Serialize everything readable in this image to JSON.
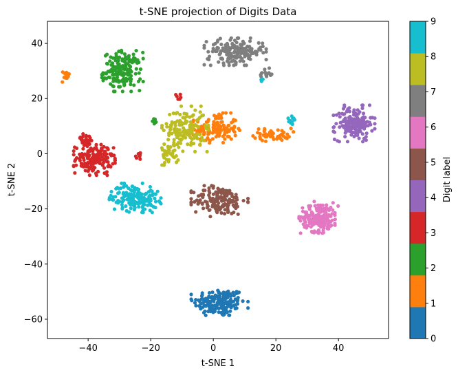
{
  "chart_data": {
    "type": "scatter",
    "title": "t-SNE projection of Digits Data",
    "xlabel": "t-SNE 1",
    "ylabel": "t-SNE 2",
    "xlim": [
      -53,
      56
    ],
    "ylim": [
      -67,
      48
    ],
    "xticks": [
      -40,
      -20,
      0,
      20,
      40
    ],
    "yticks": [
      40,
      20,
      0,
      -20,
      -40,
      -60
    ],
    "xtick_labels": [
      "−40",
      "−20",
      "0",
      "20",
      "40"
    ],
    "ytick_labels": [
      "40",
      "20",
      "0",
      "−20",
      "−40",
      "−60"
    ],
    "grid": false,
    "colorbar": {
      "label": "Digit label",
      "range": [
        0,
        9
      ],
      "ticks": [
        "0",
        "1",
        "2",
        "3",
        "4",
        "5",
        "6",
        "7",
        "8",
        "9"
      ],
      "colors": [
        "#1f77b4",
        "#ff7f0e",
        "#2ca02c",
        "#d62728",
        "#9467bd",
        "#8c564b",
        "#e377c2",
        "#7f7f7f",
        "#bcbd22",
        "#17becf"
      ]
    },
    "clusters": [
      {
        "label": 0,
        "center": [
          2,
          -54
        ],
        "spread": [
          5.5,
          3.5
        ],
        "count": 175
      },
      {
        "label": 1,
        "center": [
          1,
          9
        ],
        "spread": [
          4.5,
          3.5
        ],
        "count": 130
      },
      {
        "label": 1,
        "center": [
          19,
          7
        ],
        "spread": [
          4,
          1.5
        ],
        "count": 50
      },
      {
        "label": 1,
        "center": [
          -47,
          28
        ],
        "spread": [
          1,
          1.5
        ],
        "count": 14
      },
      {
        "label": 2,
        "center": [
          -29,
          30
        ],
        "spread": [
          4,
          4.5
        ],
        "count": 175
      },
      {
        "label": 2,
        "center": [
          -19,
          12
        ],
        "spread": [
          0.5,
          0.8
        ],
        "count": 6
      },
      {
        "label": 3,
        "center": [
          -38,
          -2
        ],
        "spread": [
          4,
          3.5
        ],
        "count": 145
      },
      {
        "label": 3,
        "center": [
          -41,
          5
        ],
        "spread": [
          2,
          2
        ],
        "count": 22
      },
      {
        "label": 3,
        "center": [
          -24,
          -1
        ],
        "spread": [
          1.2,
          0.8
        ],
        "count": 8
      },
      {
        "label": 3,
        "center": [
          -11,
          21
        ],
        "spread": [
          1,
          1
        ],
        "count": 6
      },
      {
        "label": 4,
        "center": [
          45,
          11
        ],
        "spread": [
          4,
          4
        ],
        "count": 165
      },
      {
        "label": 5,
        "center": [
          2,
          -17
        ],
        "spread": [
          5.5,
          3.5
        ],
        "count": 170
      },
      {
        "label": 6,
        "center": [
          34,
          -23
        ],
        "spread": [
          4,
          3.5
        ],
        "count": 175
      },
      {
        "label": 7,
        "center": [
          7,
          37
        ],
        "spread": [
          6,
          3
        ],
        "count": 180
      },
      {
        "label": 7,
        "center": [
          17,
          29
        ],
        "spread": [
          1.5,
          1.5
        ],
        "count": 14
      },
      {
        "label": 8,
        "center": [
          -9,
          9
        ],
        "spread": [
          4.5,
          5
        ],
        "count": 150
      },
      {
        "label": 8,
        "center": [
          -14,
          0
        ],
        "spread": [
          2,
          2.5
        ],
        "count": 35
      },
      {
        "label": 9,
        "center": [
          -25,
          -16
        ],
        "spread": [
          5,
          3.2
        ],
        "count": 165
      },
      {
        "label": 9,
        "center": [
          25,
          12
        ],
        "spread": [
          0.8,
          1
        ],
        "count": 10
      },
      {
        "label": 9,
        "center": [
          16,
          27
        ],
        "spread": [
          0.6,
          0.6
        ],
        "count": 4
      }
    ]
  }
}
